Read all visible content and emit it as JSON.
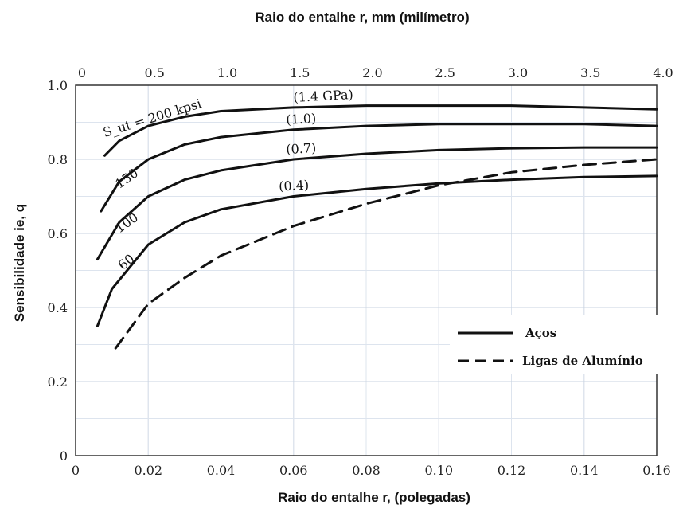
{
  "chart_data": {
    "type": "line",
    "top_axis_title": "Raio do entalhe  r,    mm (milímetro)",
    "xlabel": "Raio do entalhe  r,   (polegadas)",
    "ylabel": "Sensibilidade  ie, q",
    "xlim": [
      0,
      0.16
    ],
    "ylim": [
      0,
      1.0
    ],
    "top_xlim": [
      0,
      4.0
    ],
    "x_ticks": [
      "0",
      "0.02",
      "0.04",
      "0.06",
      "0.08",
      "0.10",
      "0.12",
      "0.14",
      "0.16"
    ],
    "top_ticks": [
      "0",
      "0.5",
      "1.0",
      "1.5",
      "2.0",
      "2.5",
      "3.0",
      "3.5",
      "4.0"
    ],
    "y_ticks": [
      "0",
      "0.2",
      "0.4",
      "0.6",
      "0.8",
      "1.0"
    ],
    "grid": true,
    "series": [
      {
        "name": "Aços",
        "style": "solid",
        "x": [
          0.008,
          0.012,
          0.02,
          0.03,
          0.04,
          0.06,
          0.08,
          0.1,
          0.12,
          0.14,
          0.16
        ],
        "y": [
          0.81,
          0.85,
          0.89,
          0.915,
          0.93,
          0.94,
          0.945,
          0.945,
          0.945,
          0.94,
          0.935
        ],
        "label": "S_ut = 200 kpsi",
        "sublabel": "(1.4 GPa)"
      },
      {
        "name": "Aços",
        "style": "solid",
        "x": [
          0.007,
          0.012,
          0.02,
          0.03,
          0.04,
          0.06,
          0.08,
          0.1,
          0.12,
          0.14,
          0.16
        ],
        "y": [
          0.66,
          0.74,
          0.8,
          0.84,
          0.86,
          0.88,
          0.89,
          0.895,
          0.895,
          0.895,
          0.89
        ],
        "label": "150",
        "sublabel": "(1.0)"
      },
      {
        "name": "Aços",
        "style": "solid",
        "x": [
          0.006,
          0.012,
          0.02,
          0.03,
          0.04,
          0.06,
          0.08,
          0.1,
          0.12,
          0.14,
          0.16
        ],
        "y": [
          0.53,
          0.63,
          0.7,
          0.745,
          0.77,
          0.8,
          0.815,
          0.825,
          0.83,
          0.832,
          0.832
        ],
        "label": "100",
        "sublabel": "(0.7)"
      },
      {
        "name": "Aços",
        "style": "solid",
        "x": [
          0.006,
          0.01,
          0.02,
          0.03,
          0.04,
          0.06,
          0.08,
          0.1,
          0.12,
          0.14,
          0.16
        ],
        "y": [
          0.35,
          0.45,
          0.57,
          0.63,
          0.665,
          0.7,
          0.72,
          0.735,
          0.745,
          0.752,
          0.755
        ],
        "label": "60",
        "sublabel": "(0.4)"
      },
      {
        "name": "Ligas de Alumínio",
        "style": "dashed",
        "x": [
          0.011,
          0.02,
          0.03,
          0.04,
          0.06,
          0.08,
          0.1,
          0.12,
          0.14,
          0.16
        ],
        "y": [
          0.29,
          0.41,
          0.48,
          0.54,
          0.62,
          0.68,
          0.73,
          0.765,
          0.785,
          0.8
        ]
      }
    ],
    "legend": {
      "placement": "right",
      "entries": [
        {
          "label": "Aços",
          "style": "solid"
        },
        {
          "label": "Ligas de Alumínio",
          "style": "dashed"
        }
      ]
    }
  }
}
